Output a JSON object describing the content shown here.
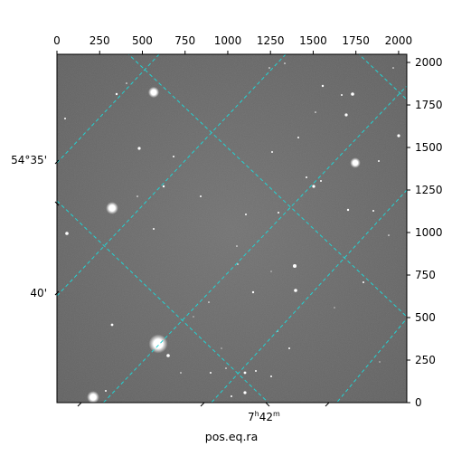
{
  "image": {
    "description_type": "astronomical-star-field",
    "colormap": "grayscale",
    "grid_color": "#22d3d3"
  },
  "axes": {
    "x_pixel_axis": {
      "ticks": [
        "0",
        "250",
        "500",
        "750",
        "1000",
        "1250",
        "1500",
        "1750",
        "2000"
      ]
    },
    "y_pixel_axis": {
      "ticks": [
        "0",
        "250",
        "500",
        "750",
        "1000",
        "1250",
        "1500",
        "1750",
        "2000"
      ]
    },
    "dec_ticks": [
      "54°35'",
      "40'"
    ],
    "ra_tick": {
      "base": "7",
      "h": "h",
      "mid": "42",
      "m": "m"
    },
    "xlabel": "pos.eq.ra"
  }
}
